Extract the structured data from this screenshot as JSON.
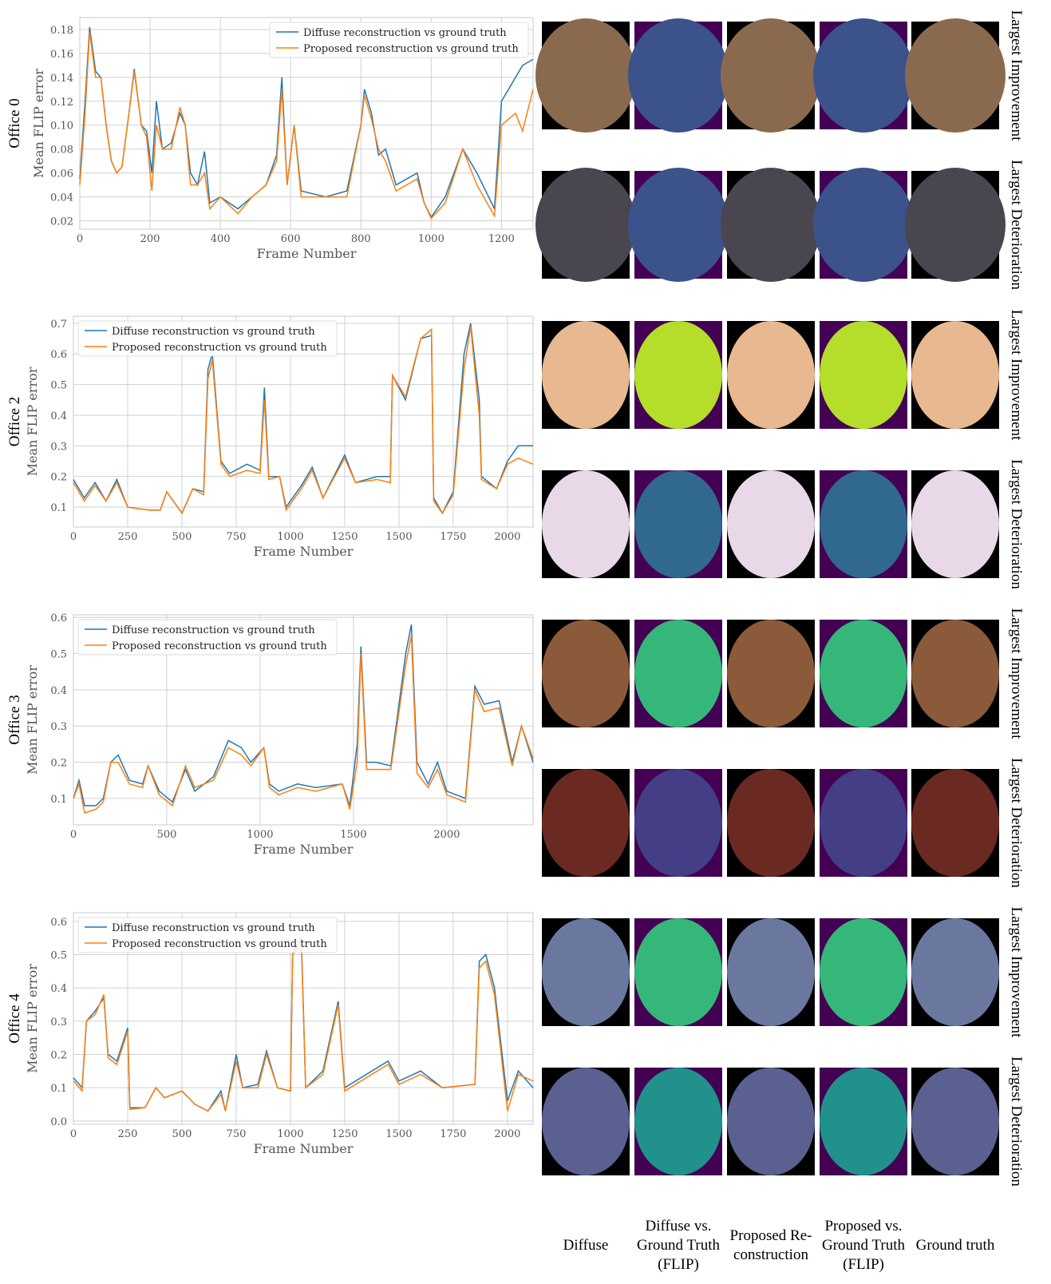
{
  "chart_data": [
    {
      "type": "line",
      "title": "Office 0",
      "x_label": "Frame Number",
      "y_label": "Mean FLIP error",
      "grid": true,
      "legend": "upper right",
      "xlim": [
        0,
        1290
      ],
      "xticks": [
        0,
        200,
        400,
        600,
        800,
        1000,
        1200
      ],
      "ylim": [
        0.013,
        0.19
      ],
      "yticks": [
        0.02,
        0.04,
        0.06,
        0.08,
        {
          "value": 0.1,
          "label": "0.10"
        },
        0.12,
        0.14,
        0.16,
        0.18
      ],
      "x": [
        0,
        15,
        28,
        45,
        60,
        75,
        90,
        105,
        120,
        140,
        155,
        175,
        190,
        205,
        218,
        235,
        260,
        285,
        300,
        315,
        335,
        355,
        370,
        400,
        450,
        490,
        530,
        560,
        575,
        590,
        610,
        630,
        700,
        760,
        800,
        810,
        830,
        850,
        870,
        900,
        960,
        980,
        1000,
        1040,
        1090,
        1130,
        1180,
        1200,
        1240,
        1260,
        1290
      ],
      "series": [
        {
          "name": "Diffuse reconstruction vs ground truth",
          "color": "#1f77b4",
          "values": [
            0.055,
            0.12,
            0.182,
            0.145,
            0.14,
            0.1,
            0.07,
            0.06,
            0.065,
            0.11,
            0.147,
            0.1,
            0.095,
            0.06,
            0.12,
            0.08,
            0.085,
            0.11,
            0.1,
            0.06,
            0.05,
            0.078,
            0.035,
            0.04,
            0.03,
            0.04,
            0.05,
            0.075,
            0.14,
            0.05,
            0.1,
            0.045,
            0.04,
            0.045,
            0.1,
            0.13,
            0.11,
            0.075,
            0.08,
            0.05,
            0.06,
            0.035,
            0.023,
            0.04,
            0.08,
            0.06,
            0.03,
            0.12,
            0.14,
            0.15,
            0.155
          ]
        },
        {
          "name": "Proposed reconstruction vs ground truth",
          "color": "#ff7f0e",
          "values": [
            0.05,
            0.11,
            0.178,
            0.14,
            0.14,
            0.1,
            0.07,
            0.06,
            0.065,
            0.11,
            0.145,
            0.1,
            0.09,
            0.045,
            0.1,
            0.08,
            0.08,
            0.115,
            0.1,
            0.05,
            0.05,
            0.06,
            0.03,
            0.04,
            0.026,
            0.04,
            0.05,
            0.07,
            0.13,
            0.05,
            0.1,
            0.04,
            0.04,
            0.04,
            0.1,
            0.125,
            0.105,
            0.08,
            0.07,
            0.045,
            0.055,
            0.035,
            0.022,
            0.035,
            0.08,
            0.05,
            0.024,
            0.1,
            0.11,
            0.095,
            0.13
          ]
        }
      ]
    },
    {
      "type": "line",
      "title": "Office 2",
      "x_label": "Frame Number",
      "y_label": "Mean FLIP error",
      "grid": true,
      "legend": "upper left",
      "xlim": [
        0,
        2118
      ],
      "xticks": [
        0,
        250,
        500,
        750,
        1000,
        1250,
        1500,
        1750,
        2000
      ],
      "ylim": [
        0.035,
        0.723
      ],
      "yticks": [
        0.1,
        0.2,
        0.3,
        0.4,
        0.5,
        0.6,
        0.7
      ],
      "x": [
        0,
        50,
        100,
        150,
        200,
        250,
        350,
        400,
        430,
        500,
        550,
        600,
        620,
        640,
        680,
        720,
        800,
        860,
        880,
        900,
        950,
        980,
        1050,
        1100,
        1150,
        1250,
        1300,
        1400,
        1460,
        1470,
        1530,
        1600,
        1650,
        1660,
        1700,
        1750,
        1800,
        1830,
        1870,
        1880,
        1950,
        2000,
        2050,
        2118
      ],
      "series": [
        {
          "name": "Diffuse reconstruction vs ground truth",
          "color": "#1f77b4",
          "values": [
            0.19,
            0.13,
            0.18,
            0.12,
            0.19,
            0.1,
            0.09,
            0.09,
            0.15,
            0.08,
            0.16,
            0.15,
            0.55,
            0.6,
            0.25,
            0.21,
            0.24,
            0.22,
            0.49,
            0.2,
            0.2,
            0.1,
            0.17,
            0.23,
            0.13,
            0.27,
            0.18,
            0.2,
            0.2,
            0.53,
            0.45,
            0.65,
            0.66,
            0.13,
            0.08,
            0.15,
            0.6,
            0.7,
            0.45,
            0.2,
            0.16,
            0.25,
            0.3,
            0.3
          ]
        },
        {
          "name": "Proposed reconstruction vs ground truth",
          "color": "#ff7f0e",
          "values": [
            0.18,
            0.12,
            0.17,
            0.12,
            0.18,
            0.1,
            0.09,
            0.09,
            0.15,
            0.08,
            0.16,
            0.14,
            0.52,
            0.58,
            0.24,
            0.2,
            0.22,
            0.21,
            0.45,
            0.19,
            0.2,
            0.09,
            0.16,
            0.22,
            0.13,
            0.26,
            0.18,
            0.19,
            0.18,
            0.53,
            0.46,
            0.65,
            0.68,
            0.12,
            0.08,
            0.14,
            0.55,
            0.69,
            0.4,
            0.19,
            0.16,
            0.24,
            0.26,
            0.24
          ]
        }
      ]
    },
    {
      "type": "line",
      "title": "Office 3",
      "x_label": "Frame Number",
      "y_label": "Mean FLIP error",
      "grid": true,
      "legend": "upper left",
      "xlim": [
        0,
        2462
      ],
      "xticks": [
        0,
        500,
        1000,
        1500,
        2000
      ],
      "ylim": [
        0.027,
        0.607
      ],
      "yticks": [
        0.1,
        0.2,
        0.3,
        0.4,
        0.5,
        0.6
      ],
      "x": [
        0,
        30,
        60,
        120,
        160,
        200,
        240,
        300,
        370,
        400,
        460,
        530,
        600,
        650,
        750,
        830,
        900,
        950,
        1020,
        1050,
        1100,
        1200,
        1300,
        1440,
        1480,
        1520,
        1540,
        1570,
        1620,
        1700,
        1780,
        1810,
        1840,
        1900,
        1950,
        2000,
        2100,
        2150,
        2200,
        2280,
        2350,
        2400,
        2462
      ],
      "series": [
        {
          "name": "Diffuse reconstruction vs ground truth",
          "color": "#1f77b4",
          "values": [
            0.1,
            0.15,
            0.08,
            0.08,
            0.1,
            0.2,
            0.22,
            0.15,
            0.14,
            0.19,
            0.12,
            0.09,
            0.18,
            0.12,
            0.16,
            0.26,
            0.24,
            0.2,
            0.24,
            0.14,
            0.12,
            0.14,
            0.13,
            0.14,
            0.08,
            0.25,
            0.52,
            0.2,
            0.2,
            0.19,
            0.5,
            0.58,
            0.2,
            0.14,
            0.2,
            0.12,
            0.1,
            0.41,
            0.36,
            0.37,
            0.2,
            0.3,
            0.2
          ]
        },
        {
          "name": "Proposed reconstruction vs ground truth",
          "color": "#ff7f0e",
          "values": [
            0.1,
            0.14,
            0.06,
            0.07,
            0.09,
            0.2,
            0.2,
            0.14,
            0.13,
            0.19,
            0.11,
            0.08,
            0.19,
            0.13,
            0.15,
            0.24,
            0.22,
            0.19,
            0.24,
            0.13,
            0.11,
            0.13,
            0.12,
            0.14,
            0.07,
            0.2,
            0.5,
            0.18,
            0.18,
            0.18,
            0.47,
            0.55,
            0.17,
            0.13,
            0.18,
            0.11,
            0.09,
            0.4,
            0.34,
            0.35,
            0.19,
            0.3,
            0.21
          ]
        }
      ]
    },
    {
      "type": "line",
      "title": "Office 4",
      "x_label": "Frame Number",
      "y_label": "Mean FLIP error",
      "grid": true,
      "legend": "upper left",
      "xlim": [
        0,
        2118
      ],
      "xticks": [
        0,
        250,
        500,
        750,
        1000,
        1250,
        1500,
        1750,
        2000
      ],
      "ylim": [
        -0.01,
        0.626
      ],
      "yticks": [
        {
          "value": 0,
          "label": "0.0"
        },
        0.1,
        0.2,
        0.3,
        0.4,
        0.5,
        0.6
      ],
      "x": [
        0,
        40,
        60,
        100,
        140,
        160,
        200,
        250,
        260,
        330,
        380,
        420,
        500,
        560,
        620,
        680,
        700,
        750,
        780,
        850,
        890,
        940,
        1000,
        1010,
        1050,
        1070,
        1150,
        1220,
        1250,
        1350,
        1450,
        1500,
        1600,
        1700,
        1850,
        1870,
        1900,
        1940,
        2000,
        2050,
        2118
      ],
      "series": [
        {
          "name": "Diffuse reconstruction vs ground truth",
          "color": "#1f77b4",
          "values": [
            0.13,
            0.1,
            0.3,
            0.33,
            0.37,
            0.2,
            0.18,
            0.28,
            0.04,
            0.04,
            0.1,
            0.07,
            0.09,
            0.05,
            0.03,
            0.09,
            0.03,
            0.2,
            0.1,
            0.11,
            0.21,
            0.1,
            0.09,
            0.5,
            0.55,
            0.1,
            0.15,
            0.36,
            0.1,
            0.14,
            0.18,
            0.12,
            0.15,
            0.1,
            0.11,
            0.48,
            0.5,
            0.4,
            0.06,
            0.15,
            0.1
          ]
        },
        {
          "name": "Proposed reconstruction vs ground truth",
          "color": "#ff7f0e",
          "values": [
            0.12,
            0.09,
            0.3,
            0.32,
            0.38,
            0.19,
            0.17,
            0.27,
            0.035,
            0.04,
            0.1,
            0.07,
            0.09,
            0.05,
            0.03,
            0.08,
            0.03,
            0.18,
            0.1,
            0.1,
            0.2,
            0.1,
            0.09,
            0.5,
            0.53,
            0.1,
            0.14,
            0.35,
            0.09,
            0.13,
            0.17,
            0.11,
            0.14,
            0.1,
            0.11,
            0.46,
            0.48,
            0.38,
            0.03,
            0.14,
            0.12
          ]
        }
      ]
    }
  ],
  "image_grid": {
    "row_labels": [
      "Largest Improvement",
      "Largest Deterioration",
      "Largest Improvement",
      "Largest Deterioration",
      "Largest Improvement",
      "Largest Deterioration",
      "Largest Improvement",
      "Largest Deterioration"
    ],
    "column_labels": [
      "Diffuse",
      "Diffuse vs. Ground Truth (FLIP)",
      "Proposed Re-construction",
      "Proposed vs. Ground Truth (FLIP)",
      "Ground truth"
    ]
  }
}
